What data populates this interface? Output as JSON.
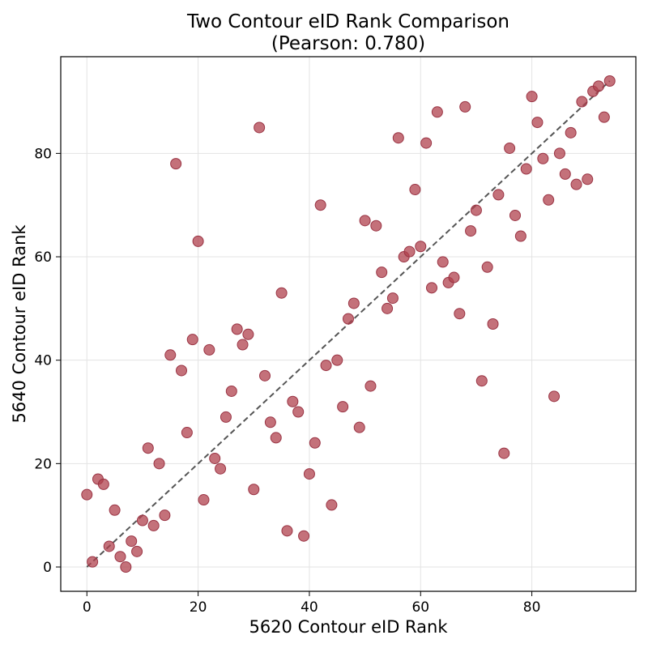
{
  "chart_data": {
    "type": "scatter",
    "title": "Two Contour eID Rank Comparison",
    "subtitle": "(Pearson: 0.780)",
    "xlabel": "5620 Contour eID Rank",
    "ylabel": "5640 Contour eID Rank",
    "xlim": [
      -4.7,
      98.7
    ],
    "ylim": [
      -4.7,
      98.7
    ],
    "xticks": [
      0,
      20,
      40,
      60,
      80
    ],
    "yticks": [
      0,
      20,
      40,
      60,
      80
    ],
    "grid": true,
    "point_color": "#b0414e",
    "reference_line": {
      "x": [
        0,
        94
      ],
      "y": [
        0,
        94
      ],
      "style": "dashed",
      "color": "#555555"
    },
    "points": [
      [
        0,
        14
      ],
      [
        1,
        1
      ],
      [
        2,
        17
      ],
      [
        3,
        16
      ],
      [
        4,
        4
      ],
      [
        5,
        11
      ],
      [
        6,
        2
      ],
      [
        7,
        0
      ],
      [
        8,
        5
      ],
      [
        9,
        3
      ],
      [
        10,
        9
      ],
      [
        11,
        23
      ],
      [
        12,
        8
      ],
      [
        13,
        20
      ],
      [
        14,
        10
      ],
      [
        15,
        41
      ],
      [
        16,
        78
      ],
      [
        17,
        38
      ],
      [
        18,
        26
      ],
      [
        19,
        44
      ],
      [
        20,
        63
      ],
      [
        21,
        13
      ],
      [
        22,
        42
      ],
      [
        23,
        21
      ],
      [
        24,
        19
      ],
      [
        25,
        29
      ],
      [
        26,
        34
      ],
      [
        27,
        46
      ],
      [
        28,
        43
      ],
      [
        29,
        45
      ],
      [
        30,
        15
      ],
      [
        31,
        85
      ],
      [
        32,
        37
      ],
      [
        33,
        28
      ],
      [
        34,
        25
      ],
      [
        35,
        53
      ],
      [
        36,
        7
      ],
      [
        37,
        32
      ],
      [
        38,
        30
      ],
      [
        39,
        6
      ],
      [
        40,
        18
      ],
      [
        41,
        24
      ],
      [
        42,
        70
      ],
      [
        43,
        39
      ],
      [
        44,
        12
      ],
      [
        45,
        40
      ],
      [
        46,
        31
      ],
      [
        47,
        48
      ],
      [
        48,
        51
      ],
      [
        49,
        27
      ],
      [
        50,
        67
      ],
      [
        51,
        35
      ],
      [
        52,
        66
      ],
      [
        53,
        57
      ],
      [
        54,
        50
      ],
      [
        55,
        52
      ],
      [
        56,
        83
      ],
      [
        57,
        60
      ],
      [
        58,
        61
      ],
      [
        59,
        73
      ],
      [
        60,
        62
      ],
      [
        61,
        82
      ],
      [
        62,
        54
      ],
      [
        63,
        88
      ],
      [
        64,
        59
      ],
      [
        65,
        55
      ],
      [
        66,
        56
      ],
      [
        67,
        49
      ],
      [
        68,
        89
      ],
      [
        69,
        65
      ],
      [
        70,
        69
      ],
      [
        71,
        36
      ],
      [
        72,
        58
      ],
      [
        73,
        47
      ],
      [
        74,
        72
      ],
      [
        75,
        22
      ],
      [
        76,
        81
      ],
      [
        77,
        68
      ],
      [
        78,
        64
      ],
      [
        79,
        77
      ],
      [
        80,
        91
      ],
      [
        81,
        86
      ],
      [
        82,
        79
      ],
      [
        83,
        71
      ],
      [
        84,
        33
      ],
      [
        85,
        80
      ],
      [
        86,
        76
      ],
      [
        87,
        84
      ],
      [
        88,
        74
      ],
      [
        89,
        90
      ],
      [
        90,
        75
      ],
      [
        91,
        92
      ],
      [
        92,
        93
      ],
      [
        93,
        87
      ],
      [
        94,
        94
      ]
    ]
  }
}
